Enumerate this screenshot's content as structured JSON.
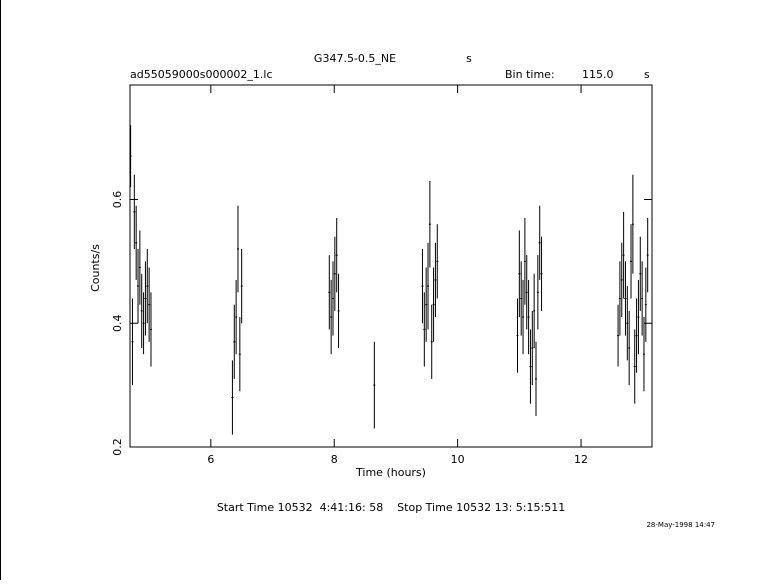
{
  "chart_data": {
    "type": "errorbar",
    "title": "G347.5-0.5_NE",
    "title_unit": "s",
    "file_name": "ad55059000s000002_1.lc",
    "bin_time_label": "Bin time:",
    "bin_time_value": "115.0",
    "bin_time_unit": "s",
    "x_label": "Time (hours)",
    "y_label": "Counts/s",
    "footer": "Start Time 10532  4:41:16: 58    Stop Time 10532 13: 5:15:511",
    "date_stamp": "28-May-1998 14:47",
    "xlim": [
      4.69,
      13.15
    ],
    "ylim": [
      0.2,
      0.785
    ],
    "xticks": [
      6,
      8,
      10,
      12
    ],
    "yticks": [
      0.2,
      0.4,
      0.6
    ],
    "color": "#000000",
    "x": [
      4.7,
      4.73,
      4.76,
      4.79,
      4.82,
      4.85,
      4.88,
      4.91,
      4.94,
      4.97,
      5.0,
      5.03,
      6.35,
      6.38,
      6.41,
      6.44,
      6.47,
      6.5,
      7.92,
      7.95,
      7.98,
      8.01,
      8.04,
      8.07,
      8.65,
      9.43,
      9.46,
      9.49,
      9.52,
      9.55,
      9.58,
      9.61,
      9.64,
      9.67,
      10.97,
      11.0,
      11.03,
      11.06,
      11.09,
      11.12,
      11.15,
      11.18,
      11.21,
      11.24,
      11.27,
      11.3,
      11.33,
      11.36,
      12.6,
      12.63,
      12.66,
      12.69,
      12.72,
      12.75,
      12.78,
      12.81,
      12.84,
      12.87,
      12.9,
      12.93,
      12.96,
      12.99,
      13.02,
      13.05,
      13.08
    ],
    "values": [
      0.67,
      0.37,
      0.58,
      0.53,
      0.46,
      0.49,
      0.42,
      0.4,
      0.44,
      0.46,
      0.43,
      0.39,
      0.28,
      0.37,
      0.41,
      0.52,
      0.35,
      0.46,
      0.45,
      0.41,
      0.44,
      0.48,
      0.51,
      0.42,
      0.3,
      0.46,
      0.39,
      0.43,
      0.46,
      0.56,
      0.37,
      0.43,
      0.47,
      0.5,
      0.38,
      0.48,
      0.44,
      0.41,
      0.5,
      0.45,
      0.41,
      0.33,
      0.36,
      0.42,
      0.31,
      0.45,
      0.53,
      0.48,
      0.38,
      0.44,
      0.47,
      0.51,
      0.44,
      0.4,
      0.36,
      0.5,
      0.56,
      0.33,
      0.38,
      0.41,
      0.48,
      0.44,
      0.35,
      0.43,
      0.51
    ],
    "errors": [
      0.05,
      0.07,
      0.06,
      0.06,
      0.06,
      0.06,
      0.06,
      0.05,
      0.06,
      0.06,
      0.06,
      0.06,
      0.06,
      0.06,
      0.06,
      0.07,
      0.06,
      0.06,
      0.06,
      0.06,
      0.06,
      0.06,
      0.06,
      0.06,
      0.07,
      0.06,
      0.06,
      0.06,
      0.07,
      0.07,
      0.06,
      0.06,
      0.06,
      0.06,
      0.06,
      0.07,
      0.06,
      0.06,
      0.07,
      0.06,
      0.06,
      0.06,
      0.06,
      0.06,
      0.06,
      0.06,
      0.06,
      0.06,
      0.05,
      0.06,
      0.06,
      0.07,
      0.06,
      0.06,
      0.06,
      0.06,
      0.08,
      0.06,
      0.06,
      0.06,
      0.06,
      0.06,
      0.06,
      0.06,
      0.06
    ]
  }
}
